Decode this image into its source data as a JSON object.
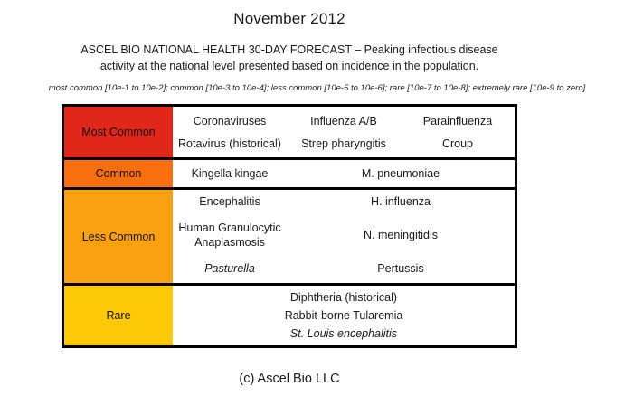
{
  "page": {
    "title": "November 2012",
    "subtitle_line1": "ASCEL BIO NATIONAL HEALTH 30-DAY FORECAST – Peaking infectious disease",
    "subtitle_line2": "activity at the national level presented based on incidence in the population.",
    "criteria_legend": "most common [10e-1 to 10e-2]; common [10e-3 to 10e-4]; less common [10e-5 to 10e-6]; rare [10e-7 to 10e-8]; extremely rare [10e-9 to zero]",
    "footer": "(c) Ascel Bio LLC"
  },
  "colors": {
    "most_common": "#e1271a",
    "common": "#f96e0d",
    "less_common": "#fba00e",
    "rare": "#ffc908",
    "border": "#000000"
  },
  "table": {
    "rows": [
      {
        "label": "Most Common",
        "items": [
          "Coronaviruses",
          "Influenza A/B",
          "Parainfluenza",
          "Rotavirus (historical)",
          "Strep pharyngitis",
          "Croup"
        ]
      },
      {
        "label": "Common",
        "items": [
          "Kingella kingae",
          "M. pneumoniae"
        ]
      },
      {
        "label": "Less Common",
        "left_items": [
          "Encephalitis",
          "Human Granulocytic Anaplasmosis",
          "Pasturella"
        ],
        "right_items": [
          "H. influenza",
          "N. meningitidis",
          "Pertussis"
        ]
      },
      {
        "label": "Rare",
        "items": [
          "Diphtheria (historical)",
          "Rabbit-borne Tularemia",
          "St. Louis encephalitis"
        ]
      }
    ]
  }
}
